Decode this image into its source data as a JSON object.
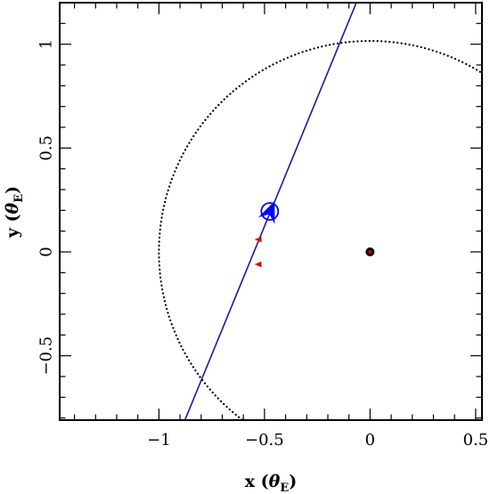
{
  "chart_data": {
    "type": "scatter",
    "title": "",
    "xlabel": {
      "prefix": "x (",
      "symbol": "θ",
      "subscript": "E",
      "suffix": ")"
    },
    "ylabel": {
      "prefix": "y (",
      "symbol": "θ",
      "subscript": "E",
      "suffix": ")"
    },
    "xlim": [
      -1.47,
      0.53
    ],
    "ylim": [
      -0.81,
      1.2
    ],
    "x_ticks": [
      {
        "value": -1,
        "label": "−1"
      },
      {
        "value": -0.5,
        "label": "−0.5"
      },
      {
        "value": 0,
        "label": "0"
      },
      {
        "value": 0.5,
        "label": "0.5"
      }
    ],
    "y_ticks": [
      {
        "value": -0.5,
        "label": "−0.5"
      },
      {
        "value": 0,
        "label": "0"
      },
      {
        "value": 0.5,
        "label": "0.5"
      },
      {
        "value": 1,
        "label": "1"
      }
    ],
    "grid": false,
    "einstein_ring": {
      "center": [
        0,
        0
      ],
      "radius": 1,
      "style": "dotted",
      "color": "#000000"
    },
    "trajectory": {
      "points": [
        [
          -0.877,
          -0.81
        ],
        [
          -0.065,
          1.2
        ]
      ],
      "color": "#1a1aa8"
    },
    "source": {
      "x": -0.475,
      "y": 0.195,
      "radius": 0.04,
      "color": "#0000ff"
    },
    "direction_arrow": {
      "tip": [
        -0.452,
        0.245
      ],
      "direction": [
        0.404,
        1.0
      ],
      "color": "#0000ff"
    },
    "lens": {
      "x": 0,
      "y": 0,
      "color": "#000000",
      "center_color": "#cc0000"
    },
    "images": [
      {
        "x": -0.525,
        "y": 0.06
      },
      {
        "x": -0.525,
        "y": -0.06
      }
    ],
    "image_color": "#dd0000"
  }
}
